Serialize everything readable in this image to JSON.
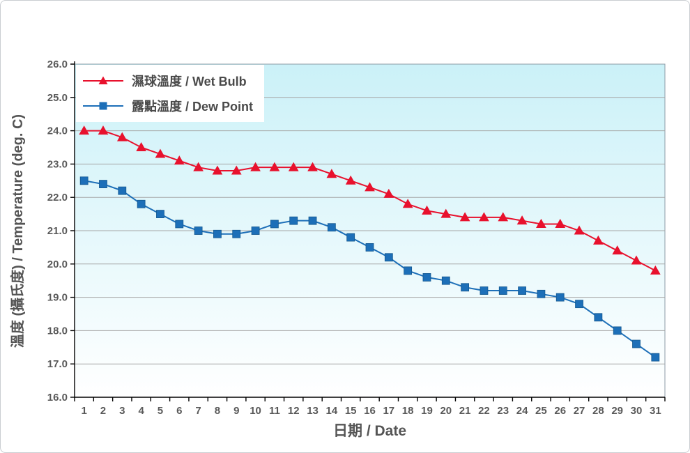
{
  "chart": {
    "x_axis_title": "日期 / Date",
    "y_axis_title": "溫度 (攝氏度) / Temperature (deg. C)",
    "legend": [
      {
        "label": "濕球溫度 / Wet Bulb",
        "marker": "triangle",
        "color": "#E8112D"
      },
      {
        "label": "露點溫度 / Dew Point",
        "marker": "square",
        "color": "#1D6FB8"
      }
    ]
  },
  "chart_data": {
    "type": "line",
    "title": "",
    "xlabel": "日期 / Date",
    "ylabel": "溫度 (攝氏度) / Temperature (deg. C)",
    "x": [
      1,
      2,
      3,
      4,
      5,
      6,
      7,
      8,
      9,
      10,
      11,
      12,
      13,
      14,
      15,
      16,
      17,
      18,
      19,
      20,
      21,
      22,
      23,
      24,
      25,
      26,
      27,
      28,
      29,
      30,
      31
    ],
    "ylim": [
      16.0,
      26.0
    ],
    "ytick_step": 1.0,
    "grid": true,
    "legend_position": "top-left",
    "plot_background_top": "#CBF1F8",
    "plot_background_bottom": "#FFFFFF",
    "gridline_color": "#A6A6A6",
    "plot_border_color": "#8C9BA5",
    "axis_color": "#000000",
    "tick_label_color": "#595959",
    "series": [
      {
        "name": "濕球溫度 / Wet Bulb",
        "marker": "triangle",
        "color": "#E8112D",
        "values": [
          24.0,
          24.0,
          23.8,
          23.5,
          23.3,
          23.1,
          22.9,
          22.8,
          22.8,
          22.9,
          22.9,
          22.9,
          22.9,
          22.7,
          22.5,
          22.3,
          22.1,
          21.8,
          21.6,
          21.5,
          21.4,
          21.4,
          21.4,
          21.3,
          21.2,
          21.2,
          21.0,
          20.7,
          20.4,
          20.1,
          19.8
        ]
      },
      {
        "name": "露點溫度 / Dew Point",
        "marker": "square",
        "color": "#1D6FB8",
        "values": [
          22.5,
          22.4,
          22.2,
          21.8,
          21.5,
          21.2,
          21.0,
          20.9,
          20.9,
          21.0,
          21.2,
          21.3,
          21.3,
          21.1,
          20.8,
          20.5,
          20.2,
          19.8,
          19.6,
          19.5,
          19.3,
          19.2,
          19.2,
          19.2,
          19.1,
          19.0,
          18.8,
          18.4,
          18.0,
          17.6,
          17.2
        ]
      }
    ]
  }
}
